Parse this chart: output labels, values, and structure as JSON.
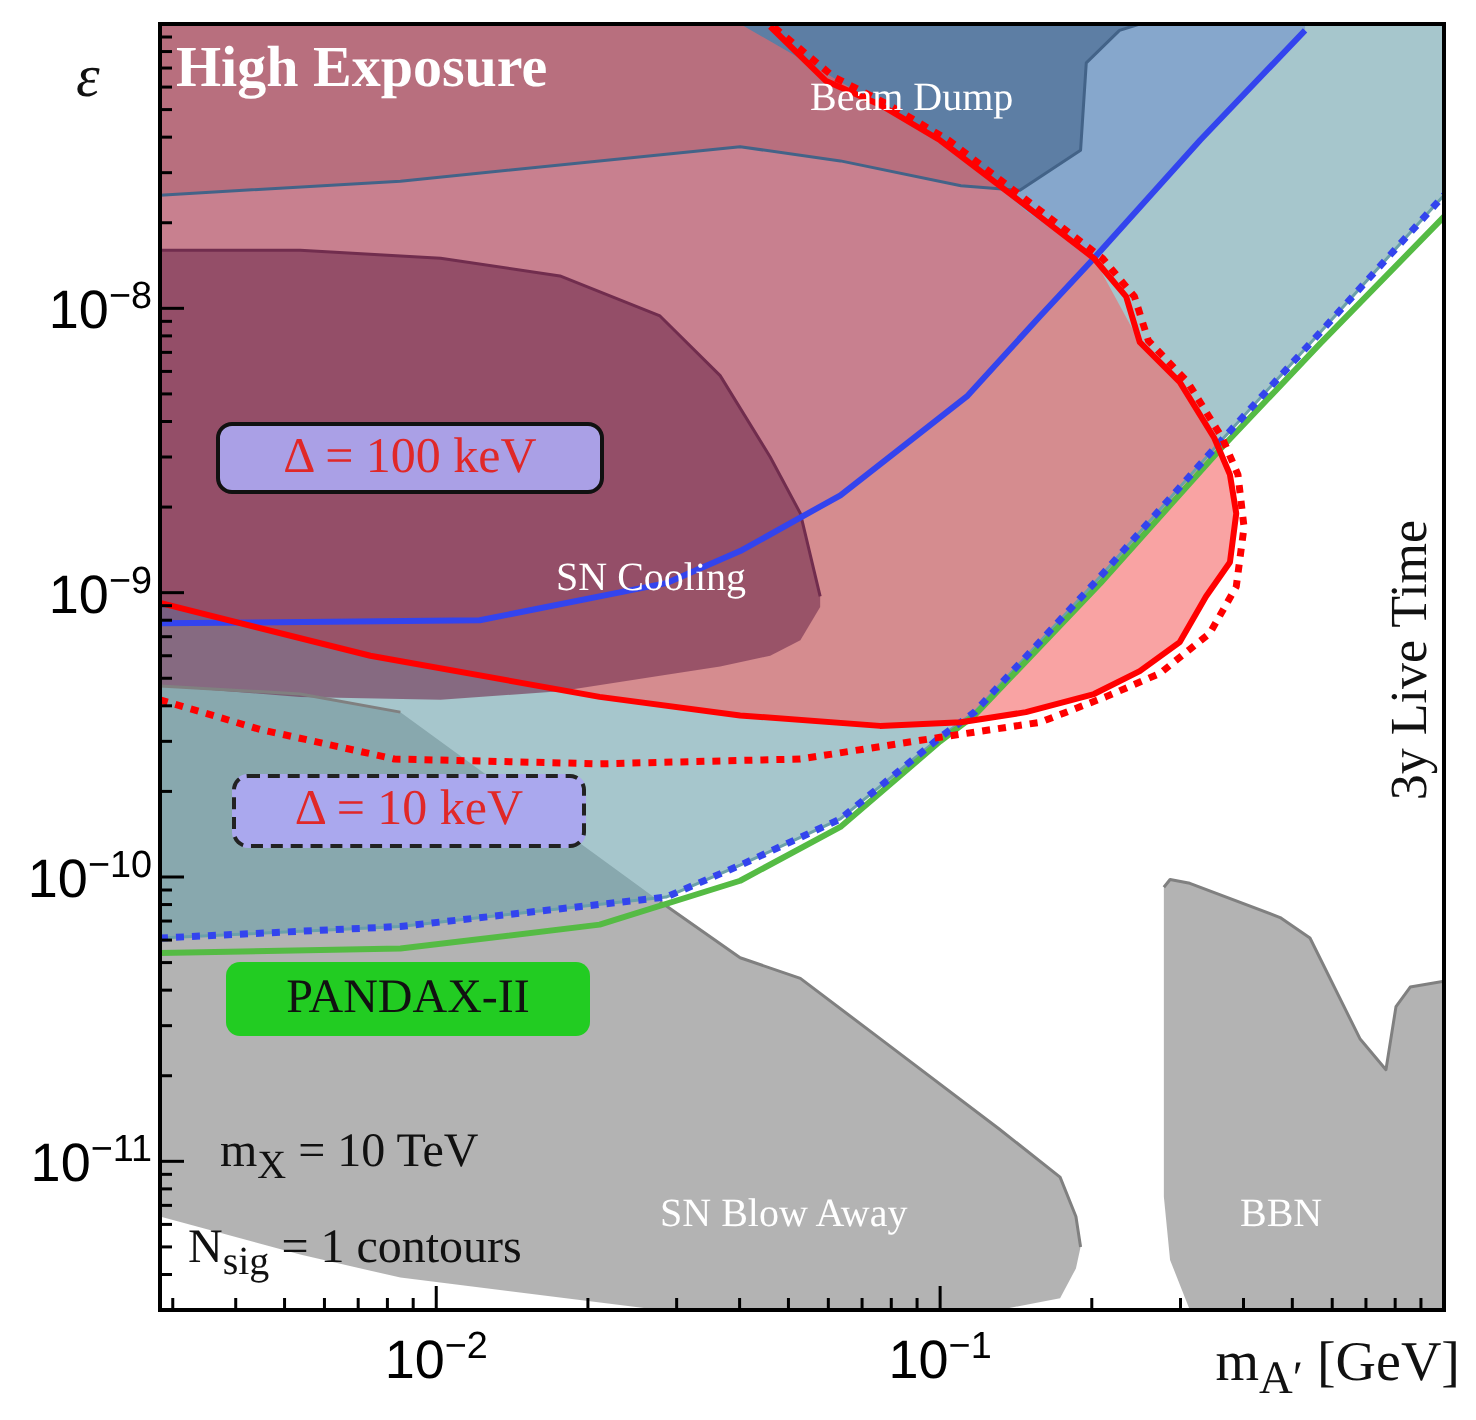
{
  "chart_data": {
    "type": "line",
    "xlabel": "m$_{A′}$ [GeV]",
    "ylabel": "ε",
    "log": "xy",
    "xlim": [
      0.00283,
      1.0
    ],
    "ylim": [
      3e-12,
      1e-07
    ],
    "xticks": [
      {
        "value": 0.003,
        "label": null
      },
      {
        "value": 0.004,
        "label": null
      },
      {
        "value": 0.005,
        "label": null
      },
      {
        "value": 0.006,
        "label": null
      },
      {
        "value": 0.007,
        "label": null
      },
      {
        "value": 0.008,
        "label": null
      },
      {
        "value": 0.009,
        "label": null
      },
      {
        "value": 0.01,
        "label": "10$^{−2}$"
      },
      {
        "value": 0.02,
        "label": null
      },
      {
        "value": 0.03,
        "label": null
      },
      {
        "value": 0.04,
        "label": null
      },
      {
        "value": 0.05,
        "label": null
      },
      {
        "value": 0.06,
        "label": null
      },
      {
        "value": 0.07,
        "label": null
      },
      {
        "value": 0.08,
        "label": null
      },
      {
        "value": 0.09,
        "label": null
      },
      {
        "value": 0.1,
        "label": "10$^{−1}$"
      },
      {
        "value": 0.2,
        "label": null
      },
      {
        "value": 0.3,
        "label": null
      },
      {
        "value": 0.4,
        "label": null
      },
      {
        "value": 0.5,
        "label": null
      },
      {
        "value": 0.6,
        "label": null
      },
      {
        "value": 0.7,
        "label": null
      },
      {
        "value": 0.8,
        "label": null
      },
      {
        "value": 0.9,
        "label": null
      }
    ],
    "yticks": [
      {
        "value": 4e-12,
        "label": null
      },
      {
        "value": 5e-12,
        "label": null
      },
      {
        "value": 6e-12,
        "label": null
      },
      {
        "value": 7e-12,
        "label": null
      },
      {
        "value": 8e-12,
        "label": null
      },
      {
        "value": 9e-12,
        "label": null
      },
      {
        "value": 1e-11,
        "label": "10$^{−11}$"
      },
      {
        "value": 2e-11,
        "label": null
      },
      {
        "value": 3e-11,
        "label": null
      },
      {
        "value": 4e-11,
        "label": null
      },
      {
        "value": 5e-11,
        "label": null
      },
      {
        "value": 6e-11,
        "label": null
      },
      {
        "value": 7e-11,
        "label": null
      },
      {
        "value": 8e-11,
        "label": null
      },
      {
        "value": 9e-11,
        "label": null
      },
      {
        "value": 1e-10,
        "label": "10$^{−10}$"
      },
      {
        "value": 2e-10,
        "label": null
      },
      {
        "value": 3e-10,
        "label": null
      },
      {
        "value": 4e-10,
        "label": null
      },
      {
        "value": 5e-10,
        "label": null
      },
      {
        "value": 6e-10,
        "label": null
      },
      {
        "value": 7e-10,
        "label": null
      },
      {
        "value": 8e-10,
        "label": null
      },
      {
        "value": 9e-10,
        "label": null
      },
      {
        "value": 1e-09,
        "label": "10$^{−9}$"
      },
      {
        "value": 2e-09,
        "label": null
      },
      {
        "value": 3e-09,
        "label": null
      },
      {
        "value": 4e-09,
        "label": null
      },
      {
        "value": 5e-09,
        "label": null
      },
      {
        "value": 6e-09,
        "label": null
      },
      {
        "value": 7e-09,
        "label": null
      },
      {
        "value": 8e-09,
        "label": null
      },
      {
        "value": 9e-09,
        "label": null
      },
      {
        "value": 1e-08,
        "label": "10$^{−8}$"
      },
      {
        "value": 2e-08,
        "label": null
      },
      {
        "value": 3e-08,
        "label": null
      },
      {
        "value": 4e-08,
        "label": null
      },
      {
        "value": 5e-08,
        "label": null
      },
      {
        "value": 6e-08,
        "label": null
      },
      {
        "value": 7e-08,
        "label": null
      },
      {
        "value": 8e-08,
        "label": null
      },
      {
        "value": 9e-08,
        "label": null
      }
    ],
    "series": [
      {
        "color": "#808080",
        "x": [
          0.00283,
          0.00537,
          0.00849,
          0.0147,
          0.0278,
          0.0401,
          0.0528,
          0.076,
          0.131,
          0.173,
          0.186,
          0.19
        ],
        "values": [
          4.7e-10,
          4.4e-10,
          3.8e-10,
          null,
          8.2e-11,
          5.2e-11,
          4.4e-11,
          2.7e-11,
          1.3e-11,
          8.8e-12,
          6.4e-12,
          5e-12
        ],
        "lower": [
          6.4e-12,
          4.7e-12,
          3.9e-12,
          null,
          3e-12,
          3e-12,
          3e-12,
          3e-12,
          3e-12,
          3.3e-12,
          4.2e-12,
          5e-12
        ],
        "upper": [
          4.7e-10,
          4.4e-10,
          3.8e-10,
          null,
          8.2e-11,
          5.2e-11,
          4.4e-11,
          2.7e-11,
          1.3e-11,
          8.8e-12,
          6.4e-12,
          5e-12
        ]
      },
      {
        "color": "#808080",
        "x": [
          0.278,
          0.286,
          0.313,
          0.473,
          0.542,
          0.681,
          0.767,
          0.803,
          0.857,
          1.0
        ],
        "values": [
          9.2e-11,
          9.8e-11,
          9.5e-11,
          7.2e-11,
          6.1e-11,
          2.7e-11,
          2.1e-11,
          3.5e-11,
          4.1e-11,
          4.3e-11
        ],
        "lower": [
          7.5e-12,
          4.5e-12,
          3e-12,
          3e-12,
          3e-12,
          3e-12,
          3e-12,
          3e-12,
          3e-12,
          3e-12
        ],
        "upper": [
          9.2e-11,
          9.8e-11,
          9.5e-11,
          7.2e-11,
          6.1e-11,
          2.7e-11,
          2.1e-11,
          3.5e-11,
          4.1e-11,
          4.3e-11
        ]
      },
      {
        "color": "#6ba0aa",
        "x": [
          0.00283,
          0.00849,
          0.0286,
          0.0401,
          0.0634,
          0.1,
          0.117,
          0.208,
          0.36,
          0.567,
          1.0
        ],
        "values": [
          6.1e-11,
          6.7e-11,
          8.5e-11,
          1.1e-10,
          1.6e-10,
          3.1e-10,
          3.8e-10,
          1.14e-09,
          3.4e-09,
          8.2e-09,
          2.5e-08
        ],
        "lower": [
          6.1e-11,
          6.7e-11,
          8.5e-11,
          1.1e-10,
          1.6e-10,
          3.1e-10,
          3.8e-10,
          1.14e-09,
          3.4e-09,
          8.2e-09,
          2.5e-08
        ],
        "upper": [
          1e-07,
          1e-07,
          1e-07,
          1e-07,
          1e-07,
          1e-07,
          1e-07,
          1e-07,
          1e-07,
          1e-07,
          1e-07
        ]
      },
      {
        "color": "#7192cc",
        "x": [
          0.00283,
          0.0122,
          0.0286,
          0.0401,
          0.0634,
          0.113,
          0.158,
          0.202,
          0.328,
          0.53
        ],
        "values": [
          null,
          null,
          null,
          null,
          null,
          null,
          null,
          null,
          null,
          null
        ],
        "lower": [
          7.8e-10,
          8e-10,
          1.08e-09,
          1.4e-09,
          2.2e-09,
          4.9e-09,
          9.4e-09,
          1.5e-08,
          3.9e-08,
          9.5e-08
        ],
        "upper": [
          1e-07,
          1e-07,
          1e-07,
          1e-07,
          1e-07,
          1e-07,
          1e-07,
          1e-07,
          1e-07,
          1e-07
        ]
      },
      {
        "color": "#436388",
        "x": [
          0.00283,
          0.00849,
          0.0401,
          0.0634,
          0.11,
          0.144,
          0.19,
          0.195,
          0.227,
          0.249
        ],
        "values": [
          2.5e-08,
          2.8e-08,
          3.7e-08,
          3.3e-08,
          2.7e-08,
          2.6e-08,
          3.6e-08,
          7.3e-08,
          9.5e-08,
          1e-07
        ],
        "lower": [
          2.5e-08,
          2.8e-08,
          3.7e-08,
          3.3e-08,
          2.7e-08,
          2.6e-08,
          3.6e-08,
          7.3e-08,
          9.5e-08,
          1e-07
        ],
        "upper": [
          1e-07,
          1e-07,
          1e-07,
          1e-07,
          1e-07,
          1e-07,
          1e-07,
          1e-07,
          1e-07,
          1e-07
        ]
      },
      {
        "color": "#f56666",
        "x": [
          0.00283,
          0.0074,
          0.0211,
          0.0401,
          0.076,
          0.11,
          0.148,
          0.202,
          0.249,
          0.299,
          0.337,
          0.376,
          0.387
        ],
        "values": [
          null,
          null,
          null,
          null,
          null,
          null,
          null,
          null,
          null,
          null,
          null,
          null,
          null
        ],
        "lower": [
          9.2e-10,
          6e-10,
          4.3e-10,
          3.7e-10,
          3.4e-10,
          3.5e-10,
          3.8e-10,
          4.4e-10,
          5.3e-10,
          6.7e-10,
          9.7e-10,
          1.28e-09,
          1.9e-09
        ],
        "upper": [
          1e-07,
          1e-07,
          1e-07,
          1e-07,
          5.2e-08,
          3.5e-08,
          2.2e-08,
          1.5e-08,
          7.6e-09,
          5.5e-09,
          3.8e-09,
          2.6e-09,
          1.9e-09
        ]
      },
      {
        "color": "#712d4e",
        "x": [
          0.00283,
          0.00537,
          0.0102,
          0.0176,
          0.0278,
          0.0366,
          0.046,
          0.0528,
          0.0578
        ],
        "values": [
          1.6e-08,
          1.6e-08,
          1.5e-08,
          1.3e-08,
          9.4e-09,
          5.8e-09,
          3e-09,
          1.9e-09,
          9.7e-10
        ],
        "lower": [
          4.7e-10,
          4.3e-10,
          4.2e-10,
          4.5e-10,
          5.1e-10,
          5.5e-10,
          6e-10,
          6.8e-10,
          8.9e-10
        ],
        "upper": [
          1.6e-08,
          1.6e-08,
          1.5e-08,
          1.3e-08,
          9.4e-09,
          5.8e-09,
          3e-09,
          1.9e-09,
          9.7e-10
        ]
      },
      {
        "color": "#55bb44",
        "line_style": "solid",
        "name": "PANDAX-II",
        "x": [
          0.00283,
          0.00849,
          0.0211,
          0.0401,
          0.0634,
          0.1,
          0.117,
          0.208,
          0.36,
          0.567,
          1.0
        ],
        "values": [
          5.4e-11,
          5.6e-11,
          6.8e-11,
          9.7e-11,
          1.5e-10,
          3e-10,
          3.7e-10,
          1.08e-09,
          3.2e-09,
          7.5e-09,
          2.1e-08
        ]
      },
      {
        "color": "#3344ee",
        "line_style": "dotted",
        "x": [
          0.00283,
          0.00849,
          0.0286,
          0.0401,
          0.0634,
          0.1,
          0.117,
          0.208,
          0.36,
          0.567,
          1.0
        ],
        "values": [
          6.1e-11,
          6.7e-11,
          8.5e-11,
          1.1e-10,
          1.6e-10,
          3.1e-10,
          3.8e-10,
          1.14e-09,
          3.4e-09,
          8.2e-09,
          2.5e-08
        ]
      },
      {
        "color": "#3344ee",
        "line_style": "solid",
        "x": [
          0.00283,
          0.0122,
          0.0286,
          0.0401,
          0.0634,
          0.113,
          0.158,
          0.202,
          0.328,
          0.53
        ],
        "values": [
          7.8e-10,
          8e-10,
          1.08e-09,
          1.4e-09,
          2.2e-09,
          4.9e-09,
          9.4e-09,
          1.5e-08,
          3.9e-08,
          9.5e-08
        ]
      },
      {
        "color": "#ff0000",
        "line_style": "dotted",
        "x": [
          0.00283,
          0.00448,
          0.00826,
          0.0211,
          0.0528,
          0.1,
          0.158,
          0.213,
          0.273,
          0.343,
          0.387,
          0.401,
          0.39,
          0.363,
          0.31,
          0.259,
          0.243,
          0.21,
          0.14,
          0.104,
          0.0789,
          0.0616,
          0.046
        ],
        "values": [
          4.2e-10,
          3.3e-10,
          2.6e-10,
          2.5e-10,
          2.6e-10,
          3.1e-10,
          3.5e-10,
          4.3e-10,
          5.2e-10,
          7.2e-10,
          1.05e-09,
          1.7e-09,
          2.6e-09,
          3.5e-09,
          5.5e-09,
          7.7e-09,
          1.1e-08,
          1.5e-08,
          2.6e-08,
          3.9e-08,
          5.2e-08,
          6.5e-08,
          1e-07
        ]
      },
      {
        "color": "#ff0000",
        "line_style": "solid",
        "x": [
          0.00283,
          0.0074,
          0.0211,
          0.0401,
          0.076,
          0.11,
          0.148,
          0.202,
          0.249,
          0.299,
          0.337,
          0.376,
          0.387,
          0.376,
          0.35,
          0.299,
          0.249,
          0.234,
          0.202,
          0.135,
          0.1,
          0.076,
          0.0594,
          0.046
        ],
        "values": [
          9.2e-10,
          6e-10,
          4.3e-10,
          3.7e-10,
          3.4e-10,
          3.5e-10,
          3.8e-10,
          4.4e-10,
          5.3e-10,
          6.7e-10,
          9.7e-10,
          1.28e-09,
          1.9e-09,
          2.6e-09,
          3.5e-09,
          5.5e-09,
          7.6e-09,
          1.1e-08,
          1.5e-08,
          2.6e-08,
          3.9e-08,
          5.2e-08,
          6.3e-08,
          9.8e-08
        ]
      }
    ],
    "annotations": [
      "High Exposure",
      "Beam Dump",
      "SN Cooling",
      "SN Blow Away",
      "BBN",
      "Δ = 100 keV",
      "Δ = 10 keV",
      "m$_{X}$ = 10 TeV",
      "N$_{sig}$ = 1 contours",
      "3y Live Time"
    ]
  }
}
